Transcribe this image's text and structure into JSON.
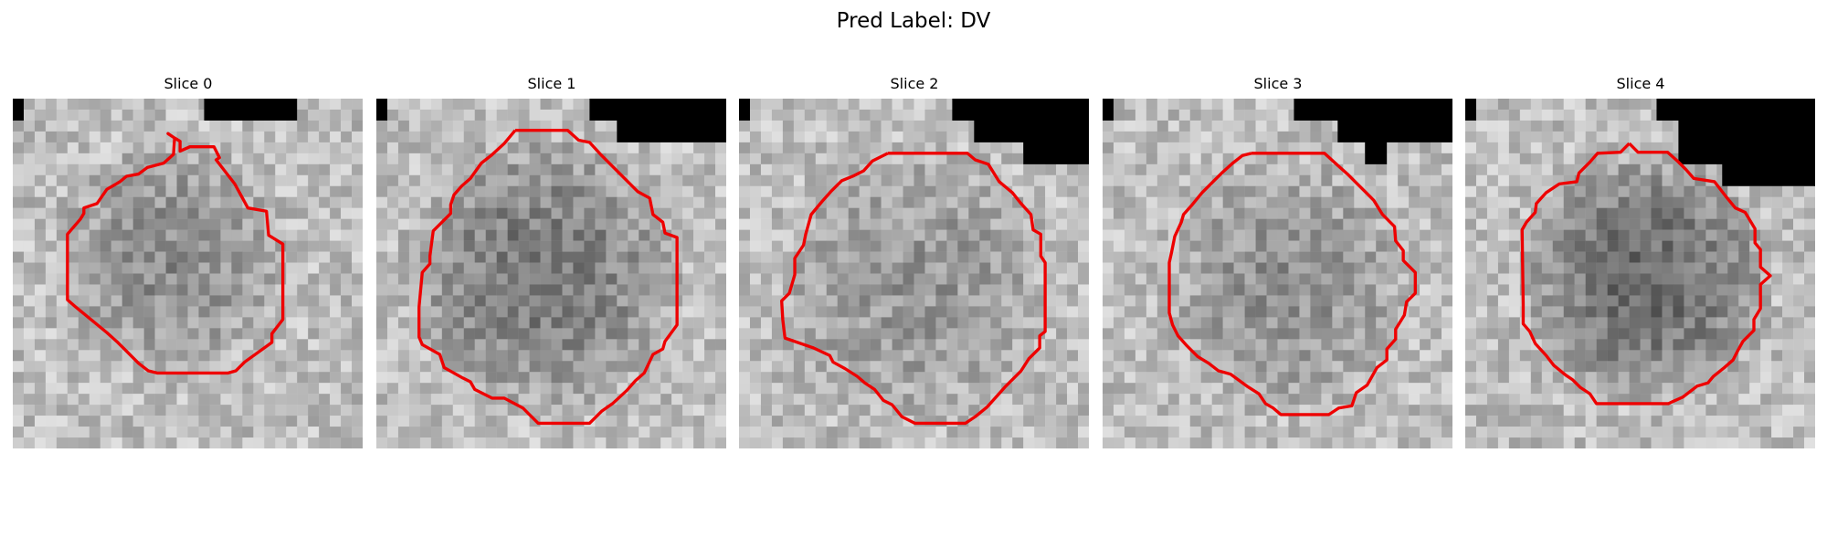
{
  "figure": {
    "suptitle": "Pred Label: DV"
  },
  "panels": [
    {
      "title": "Slice 0"
    },
    {
      "title": "Slice 1"
    },
    {
      "title": "Slice 2"
    },
    {
      "title": "Slice 3"
    },
    {
      "title": "Slice 4"
    }
  ],
  "colors": {
    "contour": "#ff0000",
    "mask": "#000000",
    "background": "#ffffff"
  }
}
